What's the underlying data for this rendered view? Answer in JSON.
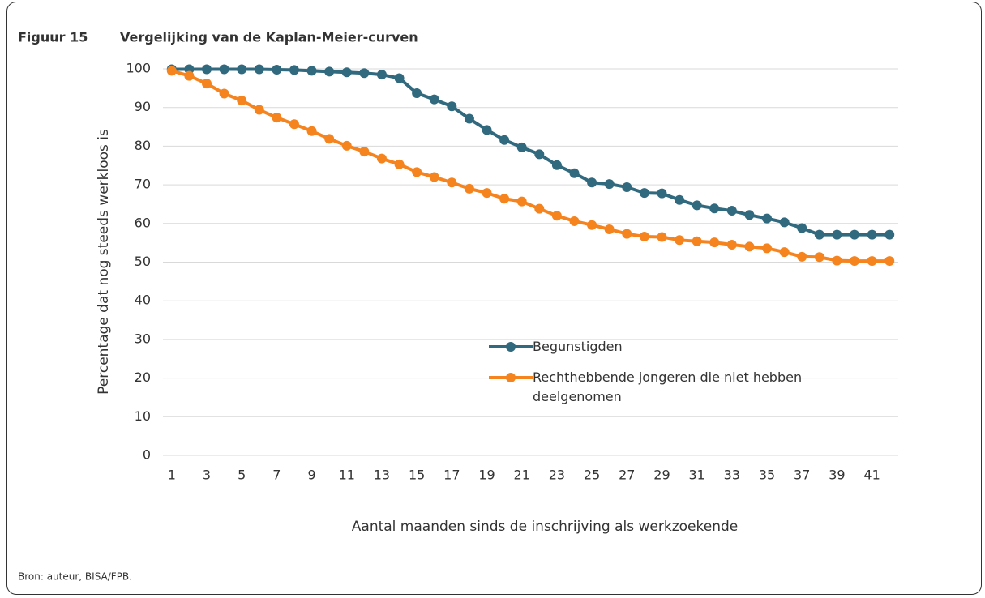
{
  "chart_data": {
    "type": "line",
    "figure_label": "Figuur 15",
    "title": "Vergelijking van de Kaplan-Meier-curven",
    "y_label": "Percentage dat nog steeds werkloos is",
    "x_label": "Aantal maanden sinds de inschrijving als werkzoekende",
    "source": "Bron: auteur, BISA/FPB.",
    "categories": [
      1,
      null,
      3,
      null,
      5,
      null,
      7,
      null,
      9,
      null,
      11,
      null,
      13,
      null,
      15,
      null,
      17,
      null,
      19,
      null,
      21,
      null,
      23,
      null,
      25,
      null,
      27,
      null,
      29,
      null,
      31,
      null,
      33,
      null,
      35,
      null,
      37,
      null,
      39,
      null,
      41,
      null
    ],
    "series": [
      {
        "name": "Begunstigden",
        "color": "#31697e",
        "values": [
          99.9,
          99.9,
          99.9,
          99.9,
          99.9,
          99.9,
          99.8,
          99.7,
          99.5,
          99.3,
          99.1,
          98.9,
          98.5,
          97.6,
          93.7,
          92.1,
          90.3,
          87.1,
          84.2,
          81.6,
          79.7,
          77.9,
          75.1,
          73.0,
          70.6,
          70.2,
          69.4,
          67.9,
          67.8,
          66.1,
          64.7,
          63.9,
          63.3,
          62.2,
          61.3,
          60.3,
          58.8,
          57.1,
          57.1,
          57.1,
          57.1,
          57.1
        ]
      },
      {
        "name": "Rechthebbende jongeren die niet hebben deelgenomen",
        "color": "#f5841f",
        "values": [
          99.5,
          98.2,
          96.2,
          93.6,
          91.8,
          89.4,
          87.4,
          85.7,
          83.9,
          81.9,
          80.1,
          78.6,
          76.8,
          75.3,
          73.3,
          72.0,
          70.6,
          69.0,
          67.9,
          66.4,
          65.7,
          63.8,
          62.0,
          60.6,
          59.6,
          58.5,
          57.3,
          56.6,
          56.5,
          55.7,
          55.4,
          55.1,
          54.5,
          54.0,
          53.6,
          52.6,
          51.4,
          51.3,
          50.4,
          50.3,
          50.3,
          50.3
        ]
      }
    ],
    "ylim": [
      0,
      100
    ],
    "yticks": [
      0,
      10,
      20,
      30,
      40,
      50,
      60,
      70,
      80,
      90,
      100
    ],
    "grid": true
  }
}
